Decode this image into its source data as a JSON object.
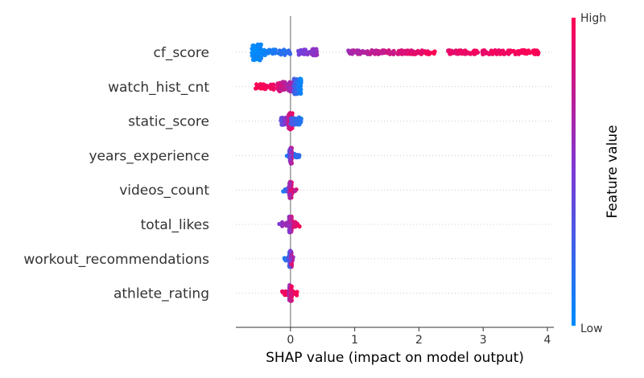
{
  "chart_data": {
    "type": "scatter",
    "subtype": "shap-beeswarm",
    "xlabel": "SHAP value (impact on model output)",
    "xlim": [
      -0.85,
      4.1
    ],
    "xticks": [
      0,
      1,
      2,
      3,
      4
    ],
    "features": [
      {
        "name": "cf_score",
        "segments": [
          {
            "x0": -0.6,
            "x1": -0.45,
            "c0": 0.0,
            "c1": 0.05,
            "n": 90,
            "spread": 1.0
          },
          {
            "x0": -0.45,
            "x1": 0.0,
            "c0": 0.05,
            "c1": 0.2,
            "n": 45,
            "spread": 0.35
          },
          {
            "x0": 0.12,
            "x1": 0.42,
            "c0": 0.45,
            "c1": 0.6,
            "n": 35,
            "spread": 0.4
          },
          {
            "x0": 0.9,
            "x1": 2.25,
            "c0": 0.65,
            "c1": 0.98,
            "n": 140,
            "spread": 0.25
          },
          {
            "x0": 2.45,
            "x1": 3.9,
            "c0": 0.9,
            "c1": 1.0,
            "n": 140,
            "spread": 0.25
          }
        ]
      },
      {
        "name": "watch_hist_cnt",
        "segments": [
          {
            "x0": -0.55,
            "x1": -0.2,
            "c0": 1.0,
            "c1": 0.9,
            "n": 40,
            "spread": 0.35
          },
          {
            "x0": -0.2,
            "x1": 0.05,
            "c0": 0.85,
            "c1": 0.6,
            "n": 60,
            "spread": 0.6
          },
          {
            "x0": 0.05,
            "x1": 0.17,
            "c0": 0.3,
            "c1": 0.0,
            "n": 70,
            "spread": 1.0
          }
        ]
      },
      {
        "name": "static_score",
        "segments": [
          {
            "x0": -0.15,
            "x1": 0.0,
            "c0": 0.4,
            "c1": 0.7,
            "n": 40,
            "spread": 0.45
          },
          {
            "x0": -0.03,
            "x1": 0.03,
            "c0": 0.75,
            "c1": 0.95,
            "n": 90,
            "spread": 1.0
          },
          {
            "x0": 0.0,
            "x1": 0.17,
            "c0": 0.3,
            "c1": 0.1,
            "n": 40,
            "spread": 0.45
          }
        ]
      },
      {
        "name": "years_experience",
        "segments": [
          {
            "x0": -0.07,
            "x1": 0.14,
            "c0": 0.1,
            "c1": 0.2,
            "n": 18,
            "spread": 0.25
          },
          {
            "x0": -0.02,
            "x1": 0.02,
            "c0": 0.3,
            "c1": 0.8,
            "n": 60,
            "spread": 1.0
          }
        ]
      },
      {
        "name": "videos_count",
        "segments": [
          {
            "x0": -0.12,
            "x1": 0.1,
            "c0": 0.05,
            "c1": 0.9,
            "n": 25,
            "spread": 0.2
          },
          {
            "x0": -0.02,
            "x1": 0.02,
            "c0": 0.6,
            "c1": 0.95,
            "n": 70,
            "spread": 1.0
          }
        ]
      },
      {
        "name": "total_likes",
        "segments": [
          {
            "x0": -0.18,
            "x1": 0.15,
            "c0": 0.5,
            "c1": 1.0,
            "n": 30,
            "spread": 0.3
          },
          {
            "x0": -0.02,
            "x1": 0.02,
            "c0": 0.5,
            "c1": 0.95,
            "n": 75,
            "spread": 1.0
          }
        ]
      },
      {
        "name": "workout_recommendations",
        "segments": [
          {
            "x0": -0.1,
            "x1": 0.05,
            "c0": 0.1,
            "c1": 0.6,
            "n": 20,
            "spread": 0.25
          },
          {
            "x0": -0.02,
            "x1": 0.02,
            "c0": 0.2,
            "c1": 0.85,
            "n": 70,
            "spread": 1.0
          }
        ]
      },
      {
        "name": "athlete_rating",
        "segments": [
          {
            "x0": -0.15,
            "x1": 0.12,
            "c0": 0.9,
            "c1": 1.0,
            "n": 25,
            "spread": 0.25
          },
          {
            "x0": -0.02,
            "x1": 0.02,
            "c0": 0.6,
            "c1": 1.0,
            "n": 75,
            "spread": 1.0
          }
        ]
      }
    ],
    "colorbar": {
      "label": "Feature value",
      "high_label": "High",
      "low_label": "Low",
      "low_color": "#008bfb",
      "high_color": "#ff0052"
    },
    "grid": "dotted horizontal row lines",
    "zero_line": true
  }
}
